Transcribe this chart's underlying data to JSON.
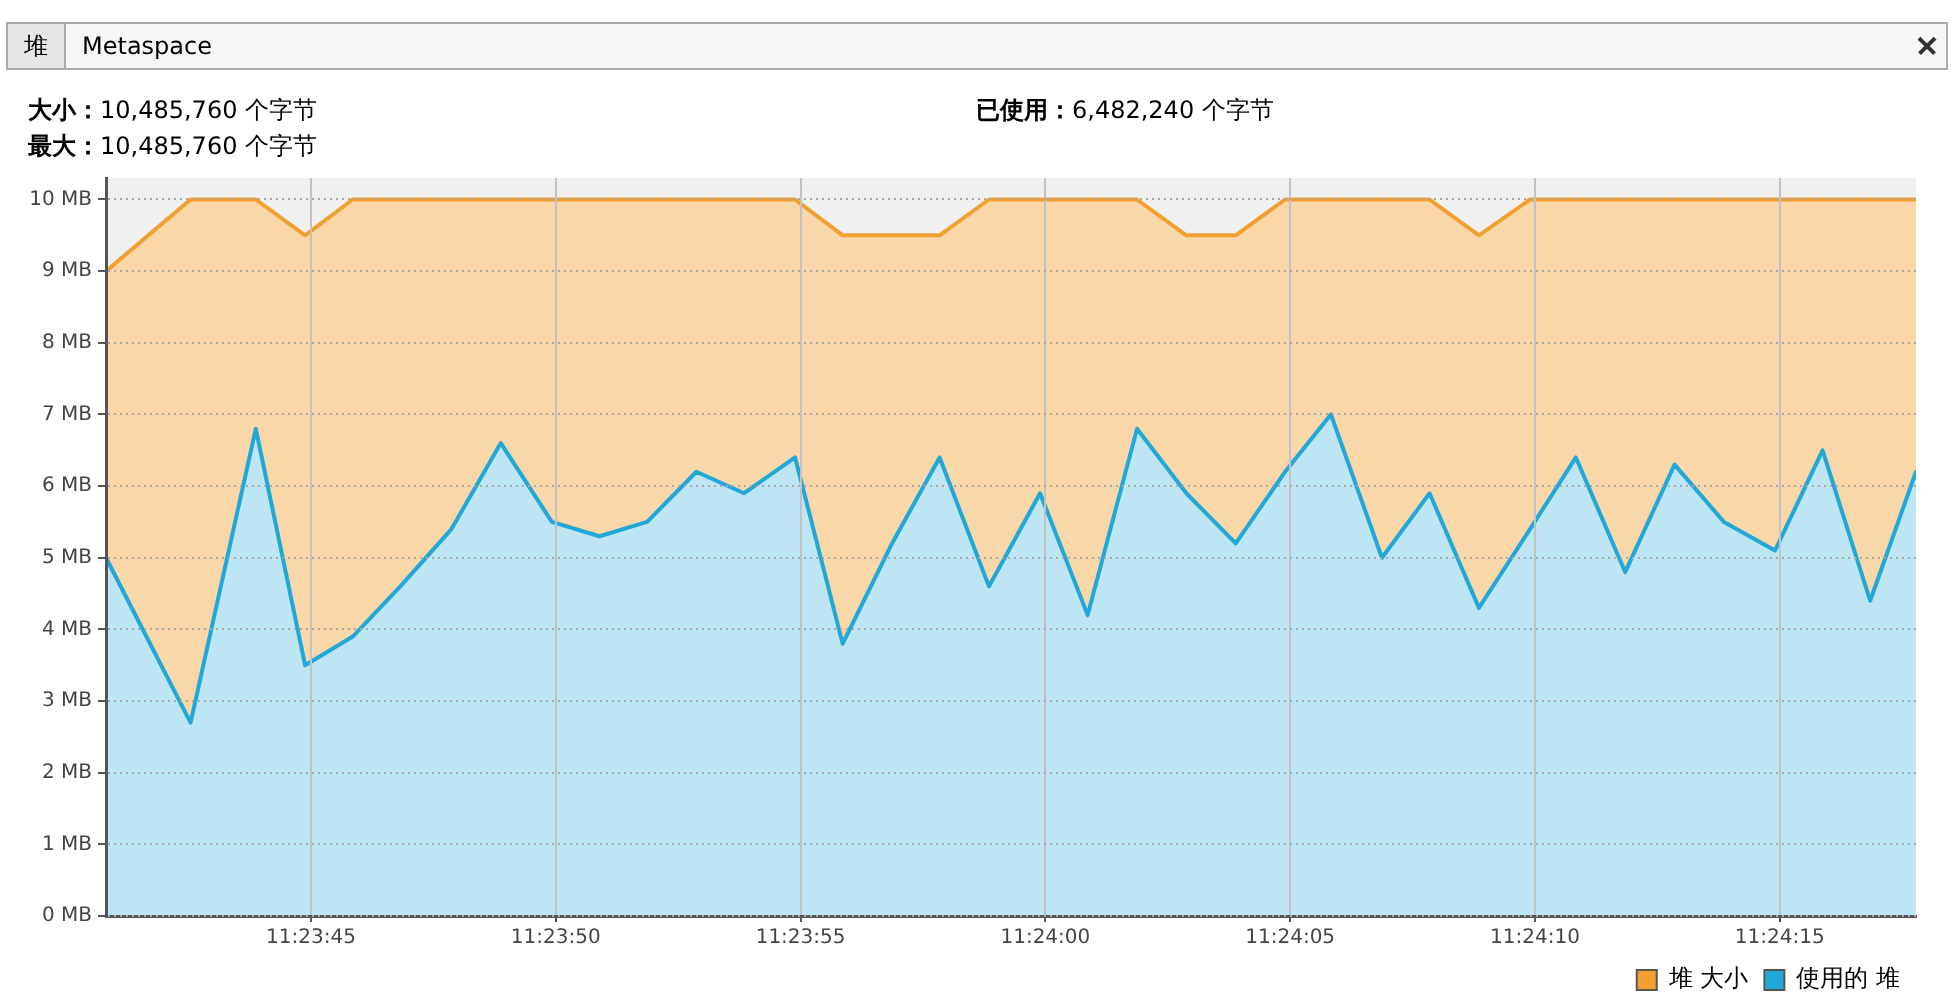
{
  "chart_data": {
    "type": "area",
    "title": "堆",
    "annotations": [
      "Metaspace",
      "大小：10,485,760 个字节",
      "最大：10,485,760 个字节",
      "已使用：6,482,240 个字节"
    ],
    "x": [
      11.39467,
      11.39515,
      11.39552,
      11.3958,
      11.39607,
      11.39634,
      11.39663,
      11.39691,
      11.3972,
      11.39747,
      11.39774,
      11.39802,
      11.39829,
      11.39858,
      11.39885,
      11.39913,
      11.3994,
      11.39968,
      11.39997,
      11.40024,
      11.40052,
      11.4008,
      11.40108,
      11.40136,
      11.40162,
      11.40191,
      11.40218,
      11.40246,
      11.40275,
      11.40301,
      11.40329,
      11.40357,
      11.40385,
      11.40414,
      11.40441,
      11.40468,
      11.40494
    ],
    "series": [
      {
        "name": "堆 大小",
        "color": "#f0a030",
        "values": [
          9,
          10,
          10,
          9.5,
          10,
          10,
          10,
          10,
          10,
          10,
          10,
          10,
          10,
          10,
          9.5,
          9.5,
          9.5,
          10,
          10,
          10,
          10,
          9.5,
          9.5,
          10,
          10,
          10,
          10,
          9.5,
          10,
          10,
          10,
          10,
          10,
          10,
          10,
          10,
          10
        ]
      },
      {
        "name": "使用的 堆",
        "color": "#22a8d8",
        "values": [
          5.0,
          2.7,
          6.8,
          3.5,
          3.9,
          4.6,
          5.4,
          6.6,
          5.5,
          5.3,
          5.5,
          6.2,
          5.9,
          6.4,
          3.8,
          5.2,
          6.4,
          4.6,
          5.9,
          4.2,
          6.8,
          5.9,
          5.2,
          6.2,
          7.0,
          5.0,
          5.9,
          4.3,
          5.4,
          6.4,
          4.8,
          6.3,
          5.5,
          5.1,
          6.5,
          4.4,
          6.2
        ]
      }
    ],
    "xlim": [
      11.39467,
      11.40494
    ],
    "xticks": [
      {
        "value": 11.395833,
        "label": "11:23:45"
      },
      {
        "value": 11.397222,
        "label": "11:23:50"
      },
      {
        "value": 11.398611,
        "label": "11:23:55"
      },
      {
        "value": 11.4,
        "label": "11:24:00"
      },
      {
        "value": 11.401389,
        "label": "11:24:05"
      },
      {
        "value": 11.402778,
        "label": "11:24:10"
      },
      {
        "value": 11.404167,
        "label": "11:24:15"
      }
    ],
    "ylim": [
      0,
      10.3
    ],
    "yticks": [
      {
        "value": 0,
        "label": "0 MB"
      },
      {
        "value": 1,
        "label": "1 MB"
      },
      {
        "value": 2,
        "label": "2 MB"
      },
      {
        "value": 3,
        "label": "3 MB"
      },
      {
        "value": 4,
        "label": "4 MB"
      },
      {
        "value": 5,
        "label": "5 MB"
      },
      {
        "value": 6,
        "label": "6 MB"
      },
      {
        "value": 7,
        "label": "7 MB"
      },
      {
        "value": 8,
        "label": "8 MB"
      },
      {
        "value": 9,
        "label": "9 MB"
      },
      {
        "value": 10,
        "label": "10 MB"
      }
    ],
    "grid": true,
    "legend": "bottom right",
    "marker": "none",
    "line_style": "solid"
  }
}
